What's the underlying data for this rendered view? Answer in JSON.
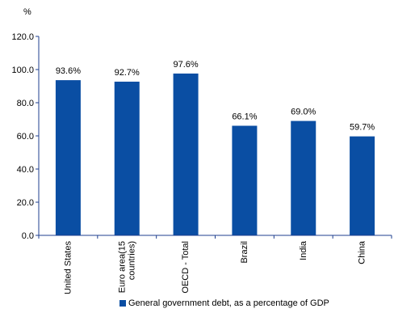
{
  "chart_data": {
    "type": "bar",
    "unit_label": "%",
    "categories": [
      "United States",
      "Euro area(15 countries)",
      "OECD - Total",
      "Brazil",
      "India",
      "China"
    ],
    "category_labels": [
      [
        "United States"
      ],
      [
        "Euro area(15",
        "countries)"
      ],
      [
        "OECD - Total"
      ],
      [
        "Brazil"
      ],
      [
        "India"
      ],
      [
        "China"
      ]
    ],
    "series": [
      {
        "name": "General government debt, as a percentage of GDP",
        "values": [
          93.6,
          92.7,
          97.6,
          66.1,
          69.0,
          59.7
        ],
        "data_labels": [
          "93.6%",
          "92.7%",
          "97.6%",
          "66.1%",
          "69.0%",
          "59.7%"
        ],
        "color": "#0a4ea3"
      }
    ],
    "ylim": [
      0,
      120
    ],
    "yticks": [
      0,
      20,
      40,
      60,
      80,
      100,
      120
    ],
    "ytick_labels": [
      "0.0",
      "20.0",
      "40.0",
      "60.0",
      "80.0",
      "100.0",
      "120.0"
    ],
    "grid": false,
    "legend_position": "bottom",
    "axis_color": "#1f3f8f"
  }
}
